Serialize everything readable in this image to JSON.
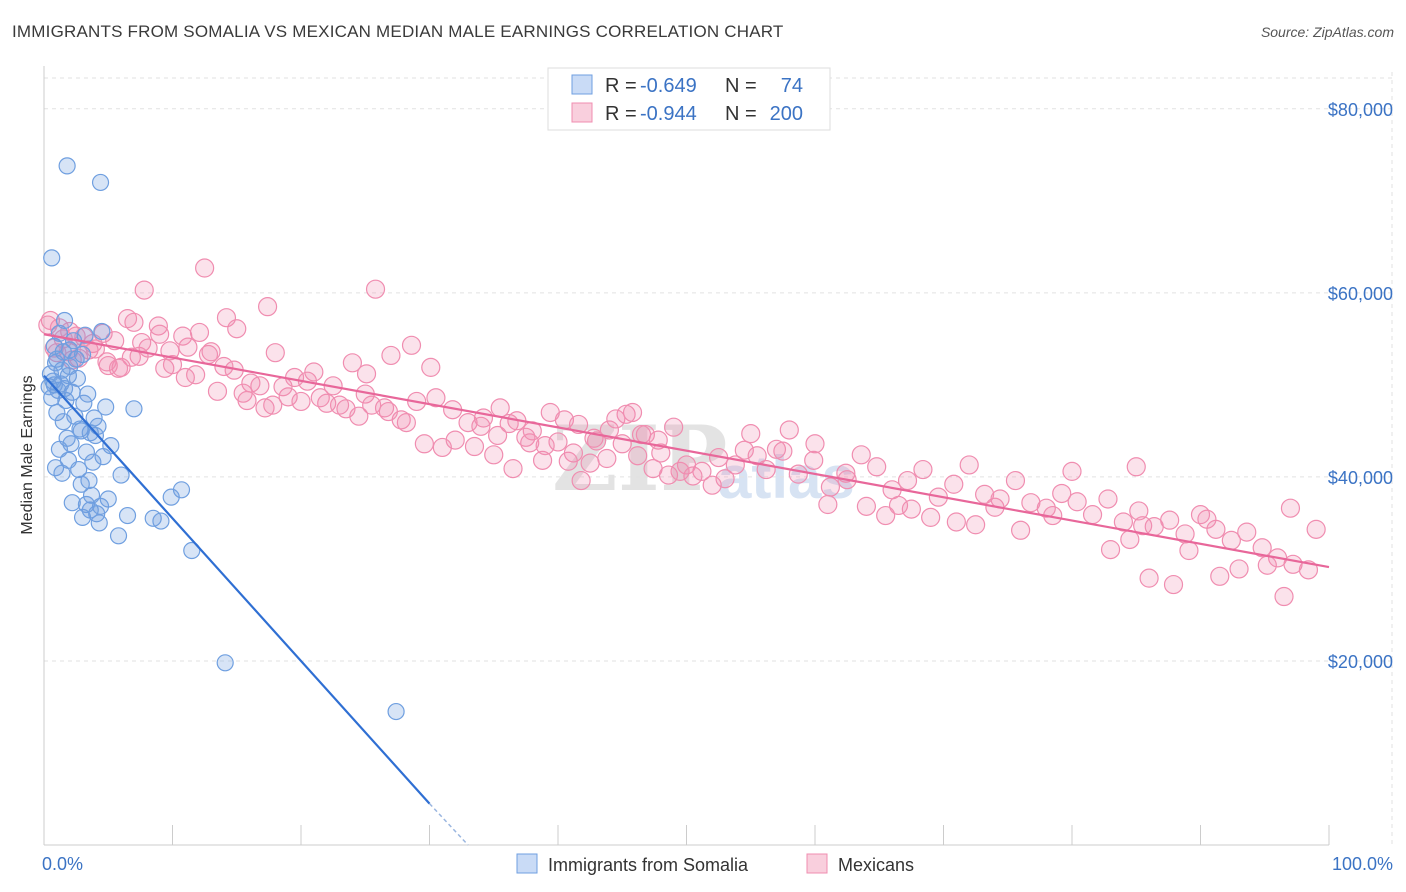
{
  "header": {
    "title": "IMMIGRANTS FROM SOMALIA VS MEXICAN MEDIAN MALE EARNINGS CORRELATION CHART",
    "source": "Source: ZipAtlas.com"
  },
  "legend": {
    "rows": [
      {
        "r_label": "R =",
        "r_value": "-0.649",
        "n_label": "N =",
        "n_value": "74",
        "color": "#6f9fe0"
      },
      {
        "r_label": "R =",
        "r_value": "-0.944",
        "n_label": "N =",
        "n_value": "200",
        "color": "#f08db0"
      }
    ]
  },
  "watermark": {
    "zip": "ZIP",
    "atlas": "atlas"
  },
  "chart_data": {
    "type": "scatter",
    "ylabel": "Median Male Earnings",
    "xlabel": "",
    "x_tick_labels": [
      "0.0%",
      "100.0%"
    ],
    "y_tick_labels": [
      "$20,000",
      "$40,000",
      "$60,000",
      "$80,000"
    ],
    "y_ticks": [
      20000,
      40000,
      60000,
      80000
    ],
    "xlim": [
      0,
      100
    ],
    "ylim": [
      0,
      84000
    ],
    "grid": true,
    "legend_placement": "top-center",
    "series": [
      {
        "name": "Immigrants from Somalia",
        "color": "#6f9fe0",
        "trend": {
          "x0": 0,
          "y0": 51000,
          "x1": 30,
          "y1": 4500,
          "dash_to_x": 33,
          "dash_to_y": 0
        },
        "points": [
          [
            1.8,
            73800
          ],
          [
            4.4,
            72000
          ],
          [
            0.6,
            63800
          ],
          [
            1.6,
            57000
          ],
          [
            4.5,
            55800
          ],
          [
            1.2,
            55600
          ],
          [
            3.2,
            55400
          ],
          [
            2.3,
            54800
          ],
          [
            0.8,
            54200
          ],
          [
            1.5,
            53600
          ],
          [
            3.0,
            53300
          ],
          [
            2.5,
            52800
          ],
          [
            0.9,
            52400
          ],
          [
            2.0,
            52000
          ],
          [
            1.4,
            51600
          ],
          [
            0.5,
            51200
          ],
          [
            1.9,
            51000
          ],
          [
            2.6,
            50700
          ],
          [
            0.7,
            50400
          ],
          [
            1.3,
            50100
          ],
          [
            0.4,
            49800
          ],
          [
            1.1,
            49400
          ],
          [
            2.2,
            49200
          ],
          [
            3.4,
            49000
          ],
          [
            0.6,
            48600
          ],
          [
            1.7,
            48300
          ],
          [
            3.1,
            48000
          ],
          [
            4.8,
            47600
          ],
          [
            7.0,
            47400
          ],
          [
            1.0,
            47000
          ],
          [
            2.4,
            46600
          ],
          [
            3.9,
            46400
          ],
          [
            1.5,
            46000
          ],
          [
            4.2,
            45500
          ],
          [
            2.8,
            45200
          ],
          [
            3.6,
            44800
          ],
          [
            4.0,
            44500
          ],
          [
            1.8,
            44200
          ],
          [
            2.1,
            43600
          ],
          [
            5.2,
            43400
          ],
          [
            1.2,
            43000
          ],
          [
            3.3,
            42700
          ],
          [
            4.6,
            42200
          ],
          [
            1.9,
            41800
          ],
          [
            3.8,
            41600
          ],
          [
            0.9,
            41000
          ],
          [
            2.7,
            40800
          ],
          [
            1.4,
            40400
          ],
          [
            6.0,
            40200
          ],
          [
            3.5,
            39600
          ],
          [
            2.9,
            39200
          ],
          [
            10.7,
            38600
          ],
          [
            9.9,
            37800
          ],
          [
            5.0,
            37600
          ],
          [
            2.2,
            37200
          ],
          [
            3.3,
            37000
          ],
          [
            4.4,
            36800
          ],
          [
            3.6,
            36400
          ],
          [
            4.1,
            36000
          ],
          [
            3.0,
            35600
          ],
          [
            6.5,
            35800
          ],
          [
            8.5,
            35500
          ],
          [
            9.1,
            35200
          ],
          [
            4.3,
            35000
          ],
          [
            5.8,
            33600
          ],
          [
            11.5,
            32000
          ],
          [
            14.1,
            19800
          ],
          [
            27.4,
            14500
          ],
          [
            1.0,
            52800
          ],
          [
            2.0,
            53800
          ],
          [
            0.8,
            50000
          ],
          [
            1.6,
            49600
          ],
          [
            2.9,
            45000
          ],
          [
            3.7,
            38000
          ]
        ]
      },
      {
        "name": "Mexicans",
        "color": "#f08db0",
        "trend": {
          "x0": 0,
          "y0": 55500,
          "x1": 100,
          "y1": 30200
        },
        "points": [
          [
            0.5,
            57000
          ],
          [
            1.2,
            56200
          ],
          [
            2.0,
            55800
          ],
          [
            3.1,
            55200
          ],
          [
            4.6,
            55600
          ],
          [
            6.5,
            57200
          ],
          [
            8.9,
            56400
          ],
          [
            10.8,
            55300
          ],
          [
            12.1,
            55700
          ],
          [
            14.2,
            57300
          ],
          [
            15.0,
            56100
          ],
          [
            7.8,
            60300
          ],
          [
            12.5,
            62700
          ],
          [
            17.4,
            58500
          ],
          [
            25.8,
            60400
          ],
          [
            0.8,
            54000
          ],
          [
            1.9,
            53600
          ],
          [
            2.7,
            52900
          ],
          [
            3.5,
            53800
          ],
          [
            4.9,
            52500
          ],
          [
            6.0,
            51900
          ],
          [
            7.4,
            53100
          ],
          [
            9.4,
            51800
          ],
          [
            11.0,
            50800
          ],
          [
            13.0,
            53600
          ],
          [
            14.8,
            51600
          ],
          [
            16.1,
            50200
          ],
          [
            18.0,
            53500
          ],
          [
            19.5,
            50800
          ],
          [
            21.0,
            51400
          ],
          [
            22.5,
            49900
          ],
          [
            24.0,
            52400
          ],
          [
            25.1,
            51200
          ],
          [
            27.0,
            53200
          ],
          [
            28.6,
            54300
          ],
          [
            30.1,
            51900
          ],
          [
            5.5,
            54800
          ],
          [
            8.1,
            54000
          ],
          [
            10.0,
            52200
          ],
          [
            12.8,
            53300
          ],
          [
            15.5,
            49100
          ],
          [
            17.2,
            47500
          ],
          [
            19.0,
            48700
          ],
          [
            20.5,
            50400
          ],
          [
            22.0,
            48000
          ],
          [
            23.5,
            47400
          ],
          [
            25.0,
            49000
          ],
          [
            26.5,
            47500
          ],
          [
            27.8,
            46200
          ],
          [
            29.0,
            48200
          ],
          [
            30.5,
            48600
          ],
          [
            31.8,
            47300
          ],
          [
            33.0,
            45900
          ],
          [
            34.2,
            46400
          ],
          [
            35.5,
            47500
          ],
          [
            36.8,
            46100
          ],
          [
            38.0,
            45000
          ],
          [
            39.4,
            47000
          ],
          [
            40.5,
            46200
          ],
          [
            41.6,
            45700
          ],
          [
            42.8,
            44200
          ],
          [
            44.0,
            45100
          ],
          [
            45.3,
            46800
          ],
          [
            46.5,
            44600
          ],
          [
            47.8,
            44000
          ],
          [
            49.0,
            45400
          ],
          [
            32.0,
            44000
          ],
          [
            33.5,
            43300
          ],
          [
            35.0,
            42400
          ],
          [
            36.2,
            45800
          ],
          [
            37.5,
            44300
          ],
          [
            38.8,
            41800
          ],
          [
            40.0,
            43800
          ],
          [
            41.2,
            42600
          ],
          [
            42.5,
            41500
          ],
          [
            43.8,
            42000
          ],
          [
            45.0,
            43600
          ],
          [
            46.2,
            42300
          ],
          [
            47.4,
            40900
          ],
          [
            48.6,
            40200
          ],
          [
            50.0,
            41300
          ],
          [
            51.2,
            40600
          ],
          [
            52.5,
            42100
          ],
          [
            53.8,
            41300
          ],
          [
            55.0,
            44700
          ],
          [
            56.2,
            40800
          ],
          [
            57.5,
            42800
          ],
          [
            58.7,
            40300
          ],
          [
            59.9,
            41800
          ],
          [
            61.2,
            38900
          ],
          [
            62.4,
            40400
          ],
          [
            63.6,
            42400
          ],
          [
            64.8,
            41100
          ],
          [
            66.0,
            38600
          ],
          [
            67.2,
            39600
          ],
          [
            68.4,
            40800
          ],
          [
            69.6,
            37800
          ],
          [
            70.8,
            39200
          ],
          [
            72.0,
            41300
          ],
          [
            73.2,
            38100
          ],
          [
            74.4,
            37600
          ],
          [
            75.6,
            39600
          ],
          [
            76.8,
            37200
          ],
          [
            78.0,
            36600
          ],
          [
            79.2,
            38200
          ],
          [
            80.4,
            37300
          ],
          [
            81.6,
            35900
          ],
          [
            82.8,
            37600
          ],
          [
            84.0,
            35100
          ],
          [
            85.2,
            36300
          ],
          [
            86.4,
            34600
          ],
          [
            87.6,
            35300
          ],
          [
            88.8,
            33800
          ],
          [
            90.0,
            35900
          ],
          [
            91.2,
            34300
          ],
          [
            92.4,
            33100
          ],
          [
            93.6,
            34000
          ],
          [
            94.8,
            32300
          ],
          [
            96.0,
            31200
          ],
          [
            97.2,
            30500
          ],
          [
            98.4,
            29900
          ],
          [
            99.0,
            34300
          ],
          [
            97.0,
            36600
          ],
          [
            96.5,
            27000
          ],
          [
            95.2,
            30400
          ],
          [
            93.0,
            30000
          ],
          [
            91.5,
            29200
          ],
          [
            90.5,
            35400
          ],
          [
            89.1,
            32000
          ],
          [
            87.9,
            28300
          ],
          [
            86.0,
            29000
          ],
          [
            84.5,
            33200
          ],
          [
            83.0,
            32100
          ],
          [
            85.5,
            34700
          ],
          [
            85.0,
            41100
          ],
          [
            80.0,
            40600
          ],
          [
            78.5,
            35800
          ],
          [
            76.0,
            34200
          ],
          [
            74.0,
            36700
          ],
          [
            72.5,
            34800
          ],
          [
            71.0,
            35100
          ],
          [
            69.0,
            35600
          ],
          [
            67.5,
            36500
          ],
          [
            66.5,
            36900
          ],
          [
            65.5,
            35800
          ],
          [
            64.0,
            36800
          ],
          [
            62.5,
            39700
          ],
          [
            61.0,
            37000
          ],
          [
            60.0,
            43600
          ],
          [
            58.0,
            45100
          ],
          [
            57.0,
            43000
          ],
          [
            55.5,
            42300
          ],
          [
            54.5,
            42900
          ],
          [
            53.0,
            39800
          ],
          [
            52.0,
            39100
          ],
          [
            50.5,
            40100
          ],
          [
            49.5,
            40600
          ],
          [
            48.0,
            42600
          ],
          [
            46.8,
            44600
          ],
          [
            45.8,
            47000
          ],
          [
            44.5,
            46300
          ],
          [
            43.0,
            43900
          ],
          [
            41.8,
            39600
          ],
          [
            40.8,
            41700
          ],
          [
            39.0,
            43400
          ],
          [
            37.8,
            43700
          ],
          [
            36.5,
            40900
          ],
          [
            35.3,
            44500
          ],
          [
            34.0,
            45500
          ],
          [
            31.0,
            43200
          ],
          [
            29.6,
            43600
          ],
          [
            28.2,
            45900
          ],
          [
            26.8,
            47100
          ],
          [
            25.5,
            47800
          ],
          [
            24.5,
            46600
          ],
          [
            23.0,
            47800
          ],
          [
            21.5,
            48600
          ],
          [
            20.0,
            48200
          ],
          [
            18.6,
            49800
          ],
          [
            17.8,
            47800
          ],
          [
            16.8,
            49900
          ],
          [
            15.8,
            48300
          ],
          [
            14.0,
            52000
          ],
          [
            13.5,
            49300
          ],
          [
            11.8,
            51100
          ],
          [
            11.2,
            54100
          ],
          [
            9.8,
            53700
          ],
          [
            9.0,
            55500
          ],
          [
            7.0,
            56800
          ],
          [
            6.8,
            53000
          ],
          [
            5.0,
            52100
          ],
          [
            3.8,
            54500
          ],
          [
            2.5,
            55300
          ],
          [
            1.5,
            55000
          ],
          [
            0.3,
            56500
          ],
          [
            1.0,
            53500
          ],
          [
            2.2,
            52700
          ],
          [
            4.0,
            53900
          ],
          [
            5.8,
            51800
          ],
          [
            7.6,
            54600
          ]
        ]
      }
    ]
  }
}
